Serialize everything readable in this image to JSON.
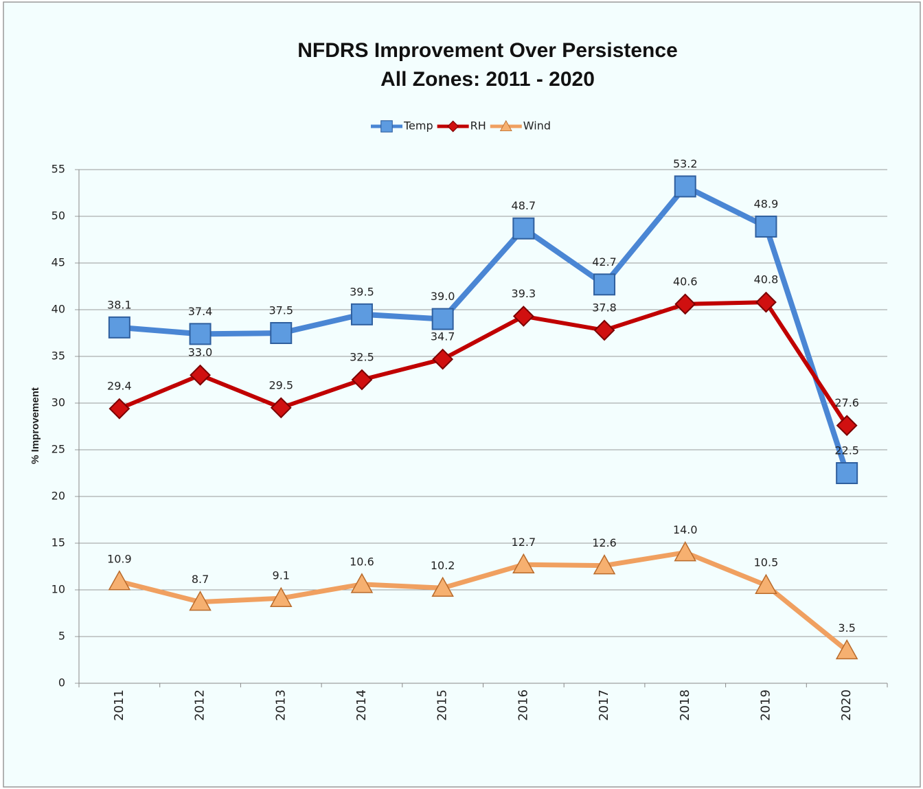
{
  "chart_data": {
    "type": "line",
    "title": "NFDRS Improvement Over Persistence",
    "subtitle": "All Zones: 2011 - 2020",
    "y_label": "% Improvement",
    "categories": [
      "2011",
      "2012",
      "2013",
      "2014",
      "2015",
      "2016",
      "2017",
      "2018",
      "2019",
      "2020"
    ],
    "series": [
      {
        "name": "Temp",
        "color": "#4a86d4",
        "marker": "square",
        "values": [
          38.1,
          37.4,
          37.5,
          39.5,
          39.0,
          48.7,
          42.7,
          53.2,
          48.9,
          22.5
        ],
        "value_labels": [
          "38.1",
          "37.4",
          "37.5",
          "39.5",
          "39.0",
          "48.7",
          "42.7",
          "53.2",
          "48.9",
          "22.5"
        ]
      },
      {
        "name": "RH",
        "color": "#c00000",
        "marker": "diamond",
        "values": [
          29.4,
          33.0,
          29.5,
          32.5,
          34.7,
          39.3,
          37.8,
          40.6,
          40.8,
          27.6
        ],
        "value_labels": [
          "29.4",
          "33.0",
          "29.5",
          "32.5",
          "34.7",
          "39.3",
          "37.8",
          "40.6",
          "40.8",
          "27.6"
        ]
      },
      {
        "name": "Wind",
        "color": "#f0a060",
        "marker": "triangle",
        "values": [
          10.9,
          8.7,
          9.1,
          10.6,
          10.2,
          12.7,
          12.6,
          14.0,
          10.5,
          3.5
        ],
        "value_labels": [
          "10.9",
          "8.7",
          "9.1",
          "10.6",
          "10.2",
          "12.7",
          "12.6",
          "14.0",
          "10.5",
          "3.5"
        ]
      }
    ],
    "ylim": [
      0,
      55
    ],
    "yticks": [
      0,
      5,
      10,
      15,
      20,
      25,
      30,
      35,
      40,
      45,
      50,
      55
    ],
    "grid": true,
    "legend": "top"
  }
}
